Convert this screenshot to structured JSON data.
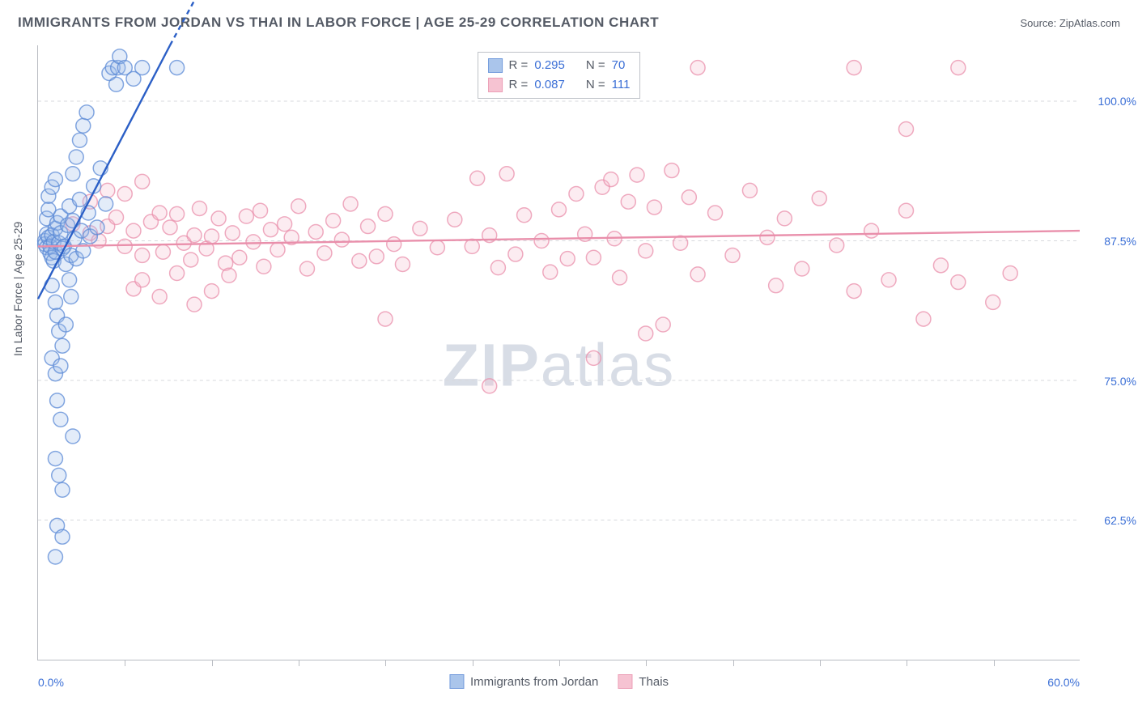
{
  "title": "IMMIGRANTS FROM JORDAN VS THAI IN LABOR FORCE | AGE 25-29 CORRELATION CHART",
  "source_label": "Source: ",
  "source_value": "ZipAtlas.com",
  "y_axis_title": "In Labor Force | Age 25-29",
  "watermark_bold": "ZIP",
  "watermark_rest": "atlas",
  "watermark_color": "#d8dde6",
  "chart": {
    "type": "scatter",
    "xlim": [
      0,
      60
    ],
    "ylim": [
      50,
      105
    ],
    "x_tick_positions": [
      5,
      10,
      15,
      20,
      25,
      30,
      35,
      40,
      45,
      50,
      55
    ],
    "x_label_min": "0.0%",
    "x_label_max": "60.0%",
    "y_gridlines": [
      62.5,
      75.0,
      87.5,
      100.0
    ],
    "y_grid_labels": [
      "62.5%",
      "75.0%",
      "87.5%",
      "100.0%"
    ],
    "grid_color": "#d7d9dd",
    "axis_color": "#b9bcc2",
    "background_color": "#ffffff",
    "marker_radius": 9,
    "marker_stroke_width": 1.5,
    "marker_fill_opacity": 0.28,
    "trend_line_width": 2.4,
    "series": [
      {
        "name": "Immigrants from Jordan",
        "color_stroke": "#5b8ad6",
        "color_fill": "#9cbce8",
        "R": "0.295",
        "N": "70",
        "trend": {
          "x1": 0,
          "y1": 82.3,
          "x2": 7.6,
          "y2": 105,
          "dashed_continues_to": {
            "x": 9.0,
            "y": 109
          }
        },
        "points": [
          [
            0.4,
            87.5
          ],
          [
            0.4,
            87.2
          ],
          [
            0.5,
            86.9
          ],
          [
            0.5,
            88.1
          ],
          [
            0.6,
            87.8
          ],
          [
            0.5,
            89.5
          ],
          [
            0.7,
            86.4
          ],
          [
            0.6,
            90.3
          ],
          [
            0.8,
            88.0
          ],
          [
            0.7,
            87.0
          ],
          [
            0.8,
            86.0
          ],
          [
            0.9,
            87.4
          ],
          [
            1.0,
            88.6
          ],
          [
            0.9,
            85.7
          ],
          [
            1.0,
            86.5
          ],
          [
            1.1,
            89.1
          ],
          [
            1.2,
            87.3
          ],
          [
            1.3,
            88.2
          ],
          [
            1.4,
            86.8
          ],
          [
            1.3,
            89.7
          ],
          [
            1.5,
            87.0
          ],
          [
            1.6,
            85.4
          ],
          [
            1.7,
            88.9
          ],
          [
            1.8,
            90.6
          ],
          [
            1.9,
            86.2
          ],
          [
            2.0,
            89.3
          ],
          [
            2.1,
            87.7
          ],
          [
            2.2,
            85.9
          ],
          [
            2.4,
            91.2
          ],
          [
            2.5,
            88.4
          ],
          [
            2.6,
            86.6
          ],
          [
            2.9,
            90.0
          ],
          [
            3.0,
            87.9
          ],
          [
            3.2,
            92.4
          ],
          [
            3.4,
            88.7
          ],
          [
            3.6,
            94.0
          ],
          [
            3.9,
            90.8
          ],
          [
            4.1,
            102.5
          ],
          [
            4.3,
            103
          ],
          [
            4.5,
            101.5
          ],
          [
            4.6,
            103
          ],
          [
            4.7,
            104
          ],
          [
            5.0,
            103
          ],
          [
            5.5,
            102
          ],
          [
            6.0,
            103
          ],
          [
            8.0,
            103
          ],
          [
            0.8,
            83.5
          ],
          [
            1.0,
            82.0
          ],
          [
            1.1,
            80.8
          ],
          [
            1.2,
            79.4
          ],
          [
            1.4,
            78.1
          ],
          [
            1.6,
            80.0
          ],
          [
            0.8,
            77.0
          ],
          [
            1.0,
            75.6
          ],
          [
            1.3,
            76.3
          ],
          [
            1.8,
            84.0
          ],
          [
            1.9,
            82.5
          ],
          [
            2.0,
            93.5
          ],
          [
            2.2,
            95.0
          ],
          [
            2.4,
            96.5
          ],
          [
            2.6,
            97.8
          ],
          [
            2.8,
            99.0
          ],
          [
            0.6,
            91.5
          ],
          [
            0.8,
            92.3
          ],
          [
            1.0,
            93.0
          ],
          [
            1.1,
            73.2
          ],
          [
            1.3,
            71.5
          ],
          [
            1.0,
            68.0
          ],
          [
            1.2,
            66.5
          ],
          [
            1.4,
            65.2
          ],
          [
            2.0,
            70.0
          ],
          [
            1.1,
            62.0
          ],
          [
            1.4,
            61.0
          ],
          [
            1.0,
            59.2
          ]
        ]
      },
      {
        "name": "Thais",
        "color_stroke": "#e98fab",
        "color_fill": "#f5b9cb",
        "R": "0.087",
        "N": "111",
        "trend": {
          "x1": 0,
          "y1": 87.0,
          "x2": 60,
          "y2": 88.4
        },
        "points": [
          [
            2,
            89.0
          ],
          [
            3,
            88.2
          ],
          [
            3.5,
            87.5
          ],
          [
            4,
            88.8
          ],
          [
            4.5,
            89.6
          ],
          [
            5,
            87.0
          ],
          [
            5.5,
            88.4
          ],
          [
            6,
            86.2
          ],
          [
            6.5,
            89.2
          ],
          [
            7,
            90.0
          ],
          [
            7.2,
            86.5
          ],
          [
            7.6,
            88.7
          ],
          [
            8,
            89.9
          ],
          [
            8.4,
            87.3
          ],
          [
            8.8,
            85.8
          ],
          [
            9,
            88.0
          ],
          [
            9.3,
            90.4
          ],
          [
            9.7,
            86.8
          ],
          [
            10,
            87.9
          ],
          [
            10.4,
            89.5
          ],
          [
            10.8,
            85.5
          ],
          [
            11.2,
            88.2
          ],
          [
            11.6,
            86.0
          ],
          [
            12,
            89.7
          ],
          [
            12.4,
            87.4
          ],
          [
            12.8,
            90.2
          ],
          [
            13,
            85.2
          ],
          [
            13.4,
            88.5
          ],
          [
            13.8,
            86.7
          ],
          [
            14.2,
            89.0
          ],
          [
            14.6,
            87.8
          ],
          [
            15,
            90.6
          ],
          [
            15.5,
            85.0
          ],
          [
            16,
            88.3
          ],
          [
            16.5,
            86.4
          ],
          [
            17,
            89.3
          ],
          [
            17.5,
            87.6
          ],
          [
            18,
            90.8
          ],
          [
            18.5,
            85.7
          ],
          [
            19,
            88.8
          ],
          [
            19.5,
            86.1
          ],
          [
            20,
            89.9
          ],
          [
            20.5,
            87.2
          ],
          [
            21,
            85.4
          ],
          [
            22,
            88.6
          ],
          [
            23,
            86.9
          ],
          [
            24,
            89.4
          ],
          [
            25,
            87.0
          ],
          [
            25.3,
            93.1
          ],
          [
            26,
            88.0
          ],
          [
            26.5,
            85.1
          ],
          [
            27,
            93.5
          ],
          [
            27.5,
            86.3
          ],
          [
            28,
            89.8
          ],
          [
            29,
            87.5
          ],
          [
            29.5,
            84.7
          ],
          [
            30,
            90.3
          ],
          [
            30.5,
            85.9
          ],
          [
            31,
            91.7
          ],
          [
            31.5,
            88.1
          ],
          [
            32,
            86.0
          ],
          [
            32.5,
            92.3
          ],
          [
            33,
            93.0
          ],
          [
            33.2,
            87.7
          ],
          [
            33.5,
            84.2
          ],
          [
            34,
            91.0
          ],
          [
            34.5,
            93.4
          ],
          [
            35,
            86.6
          ],
          [
            35.5,
            90.5
          ],
          [
            36,
            80.0
          ],
          [
            36.5,
            93.8
          ],
          [
            37,
            87.3
          ],
          [
            37.5,
            91.4
          ],
          [
            38,
            84.5
          ],
          [
            39,
            90.0
          ],
          [
            40,
            86.2
          ],
          [
            41,
            92.0
          ],
          [
            42,
            87.8
          ],
          [
            42.5,
            83.5
          ],
          [
            43,
            89.5
          ],
          [
            44,
            85.0
          ],
          [
            45,
            91.3
          ],
          [
            46,
            87.1
          ],
          [
            47,
            83.0
          ],
          [
            48,
            88.4
          ],
          [
            49,
            84.0
          ],
          [
            50,
            90.2
          ],
          [
            51,
            80.5
          ],
          [
            52,
            85.3
          ],
          [
            53,
            83.8
          ],
          [
            55,
            82.0
          ],
          [
            56,
            84.6
          ],
          [
            20,
            80.5
          ],
          [
            26,
            74.5
          ],
          [
            32,
            77.0
          ],
          [
            35,
            79.2
          ],
          [
            31,
            103
          ],
          [
            38,
            103
          ],
          [
            47,
            103
          ],
          [
            53,
            103
          ],
          [
            50,
            97.5
          ],
          [
            5.5,
            83.2
          ],
          [
            6,
            84.0
          ],
          [
            7,
            82.5
          ],
          [
            8,
            84.6
          ],
          [
            9,
            81.8
          ],
          [
            10,
            83.0
          ],
          [
            11,
            84.4
          ],
          [
            3,
            91.0
          ],
          [
            4,
            92.0
          ],
          [
            5,
            91.7
          ],
          [
            6,
            92.8
          ]
        ]
      }
    ]
  },
  "legend_stats": {
    "r_label": "R =",
    "n_label": "N ="
  },
  "bottom_legend": [
    {
      "label": "Immigrants from Jordan",
      "stroke": "#5b8ad6",
      "fill": "#9cbce8"
    },
    {
      "label": "Thais",
      "stroke": "#e98fab",
      "fill": "#f5b9cb"
    }
  ]
}
